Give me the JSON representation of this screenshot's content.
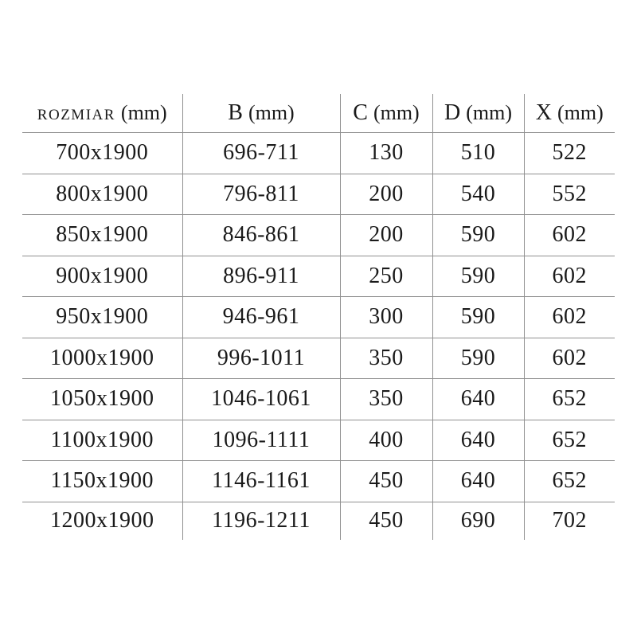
{
  "chart_data": {
    "type": "table",
    "columns": [
      {
        "name": "rozmiar",
        "label": "ROZMIAR",
        "unit": "(mm)"
      },
      {
        "name": "b",
        "label": "B",
        "unit": "(mm)"
      },
      {
        "name": "c",
        "label": "C",
        "unit": "(mm)"
      },
      {
        "name": "d",
        "label": "D",
        "unit": "(mm)"
      },
      {
        "name": "x",
        "label": "X",
        "unit": "(mm)"
      }
    ],
    "rows": [
      [
        "700x1900",
        "696-711",
        "130",
        "510",
        "522"
      ],
      [
        "800x1900",
        "796-811",
        "200",
        "540",
        "552"
      ],
      [
        "850x1900",
        "846-861",
        "200",
        "590",
        "602"
      ],
      [
        "900x1900",
        "896-911",
        "250",
        "590",
        "602"
      ],
      [
        "950x1900",
        "946-961",
        "300",
        "590",
        "602"
      ],
      [
        "1000x1900",
        "996-1011",
        "350",
        "590",
        "602"
      ],
      [
        "1050x1900",
        "1046-1061",
        "350",
        "640",
        "652"
      ],
      [
        "1100x1900",
        "1096-1111",
        "400",
        "640",
        "652"
      ],
      [
        "1150x1900",
        "1146-1161",
        "450",
        "640",
        "652"
      ],
      [
        "1200x1900",
        "1196-1211",
        "450",
        "690",
        "702"
      ]
    ],
    "layout": {
      "grid": "inner-lines-only",
      "legend": "none"
    }
  },
  "colors": {
    "grid": "#909090",
    "text": "#1a1a1a",
    "background": "#ffffff"
  }
}
